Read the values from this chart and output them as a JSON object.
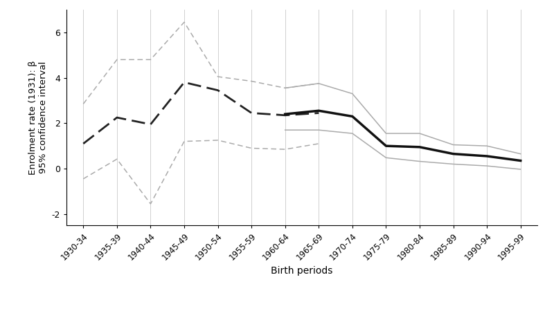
{
  "x_labels": [
    "1930-34",
    "1935-39",
    "1940-44",
    "1945-49",
    "1950-54",
    "1955-59",
    "1960-64",
    "1965-69",
    "1970-74",
    "1975-79",
    "1980-84",
    "1985-89",
    "1990-94",
    "1995-99"
  ],
  "x_values": [
    0,
    1,
    2,
    3,
    4,
    5,
    6,
    7,
    8,
    9,
    10,
    11,
    12,
    13
  ],
  "census1984_main": [
    1.1,
    2.25,
    1.95,
    3.8,
    3.45,
    2.45,
    2.35,
    2.45,
    null,
    null,
    null,
    null,
    null,
    null
  ],
  "census1984_upper": [
    2.85,
    4.8,
    4.8,
    6.45,
    4.05,
    3.85,
    3.55,
    3.75,
    null,
    null,
    null,
    null,
    null,
    null
  ],
  "census1984_lower": [
    -0.45,
    0.42,
    -1.55,
    1.2,
    1.25,
    0.9,
    0.85,
    1.1,
    null,
    null,
    null,
    null,
    null,
    null
  ],
  "census2014_main": [
    null,
    null,
    null,
    null,
    null,
    null,
    2.4,
    2.55,
    2.3,
    1.0,
    0.95,
    0.65,
    0.55,
    0.35
  ],
  "census2014_upper": [
    null,
    null,
    null,
    null,
    null,
    null,
    3.55,
    3.75,
    3.3,
    1.55,
    1.55,
    1.05,
    1.0,
    0.65
  ],
  "census2014_lower": [
    null,
    null,
    null,
    null,
    null,
    null,
    1.7,
    1.7,
    1.55,
    0.48,
    0.32,
    0.2,
    0.12,
    -0.03
  ],
  "ylim": [
    -2.5,
    7.0
  ],
  "yticks": [
    -2,
    0,
    2,
    4,
    6
  ],
  "ylabel": "Enrolment rate (1931): β\n95% confidence interval",
  "xlabel": "Birth periods",
  "color_main_1984": "#222222",
  "color_ci_1984": "#aaaaaa",
  "color_main_2014": "#111111",
  "color_ci_2014": "#aaaaaa",
  "background_color": "#ffffff",
  "grid_color": "#d0d0d0"
}
